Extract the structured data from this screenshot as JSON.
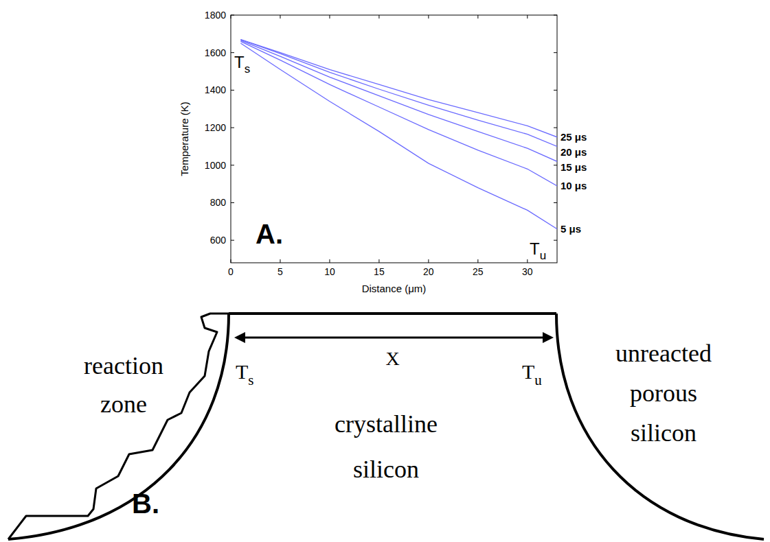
{
  "chart_data": {
    "type": "line",
    "x_label": "Distance (μm)",
    "y_label": "Temperature (K)",
    "panel_label": "A.",
    "x": [
      1,
      5,
      10,
      15,
      20,
      25,
      30,
      33
    ],
    "series": [
      {
        "name": "25 μs",
        "color": "#6b6bff",
        "values": [
          1670,
          1600,
          1510,
          1430,
          1350,
          1280,
          1210,
          1150
        ]
      },
      {
        "name": "20 μs",
        "color": "#6b6bff",
        "values": [
          1670,
          1595,
          1495,
          1405,
          1320,
          1240,
          1165,
          1100
        ]
      },
      {
        "name": "15 μs",
        "color": "#6b6bff",
        "values": [
          1665,
          1580,
          1470,
          1370,
          1270,
          1180,
          1090,
          1020
        ]
      },
      {
        "name": "10 μs",
        "color": "#6b6bff",
        "values": [
          1660,
          1560,
          1430,
          1310,
          1190,
          1080,
          980,
          890
        ]
      },
      {
        "name": "5 μs",
        "color": "#6b6bff",
        "values": [
          1650,
          1510,
          1340,
          1180,
          1010,
          880,
          760,
          660
        ]
      }
    ],
    "xlim": [
      0,
      33
    ],
    "ylim": [
      480,
      1800
    ],
    "xticks": [
      0,
      5,
      10,
      15,
      20,
      25,
      30
    ],
    "yticks": [
      600,
      800,
      1000,
      1200,
      1400,
      1600,
      1800
    ],
    "grid": false,
    "annotations": [
      {
        "text": "T",
        "subscript": "s"
      },
      {
        "text": "T",
        "subscript": "u"
      }
    ]
  },
  "diagram": {
    "panel_label": "B.",
    "regions": [
      {
        "label": [
          "reaction",
          "zone"
        ]
      },
      {
        "label": [
          "crystalline",
          "silicon"
        ]
      },
      {
        "label": [
          "unreacted",
          "porous",
          "silicon"
        ]
      }
    ],
    "dimension": {
      "label": "X",
      "start": {
        "text": "T",
        "subscript": "s"
      },
      "end": {
        "text": "T",
        "subscript": "u"
      }
    }
  }
}
